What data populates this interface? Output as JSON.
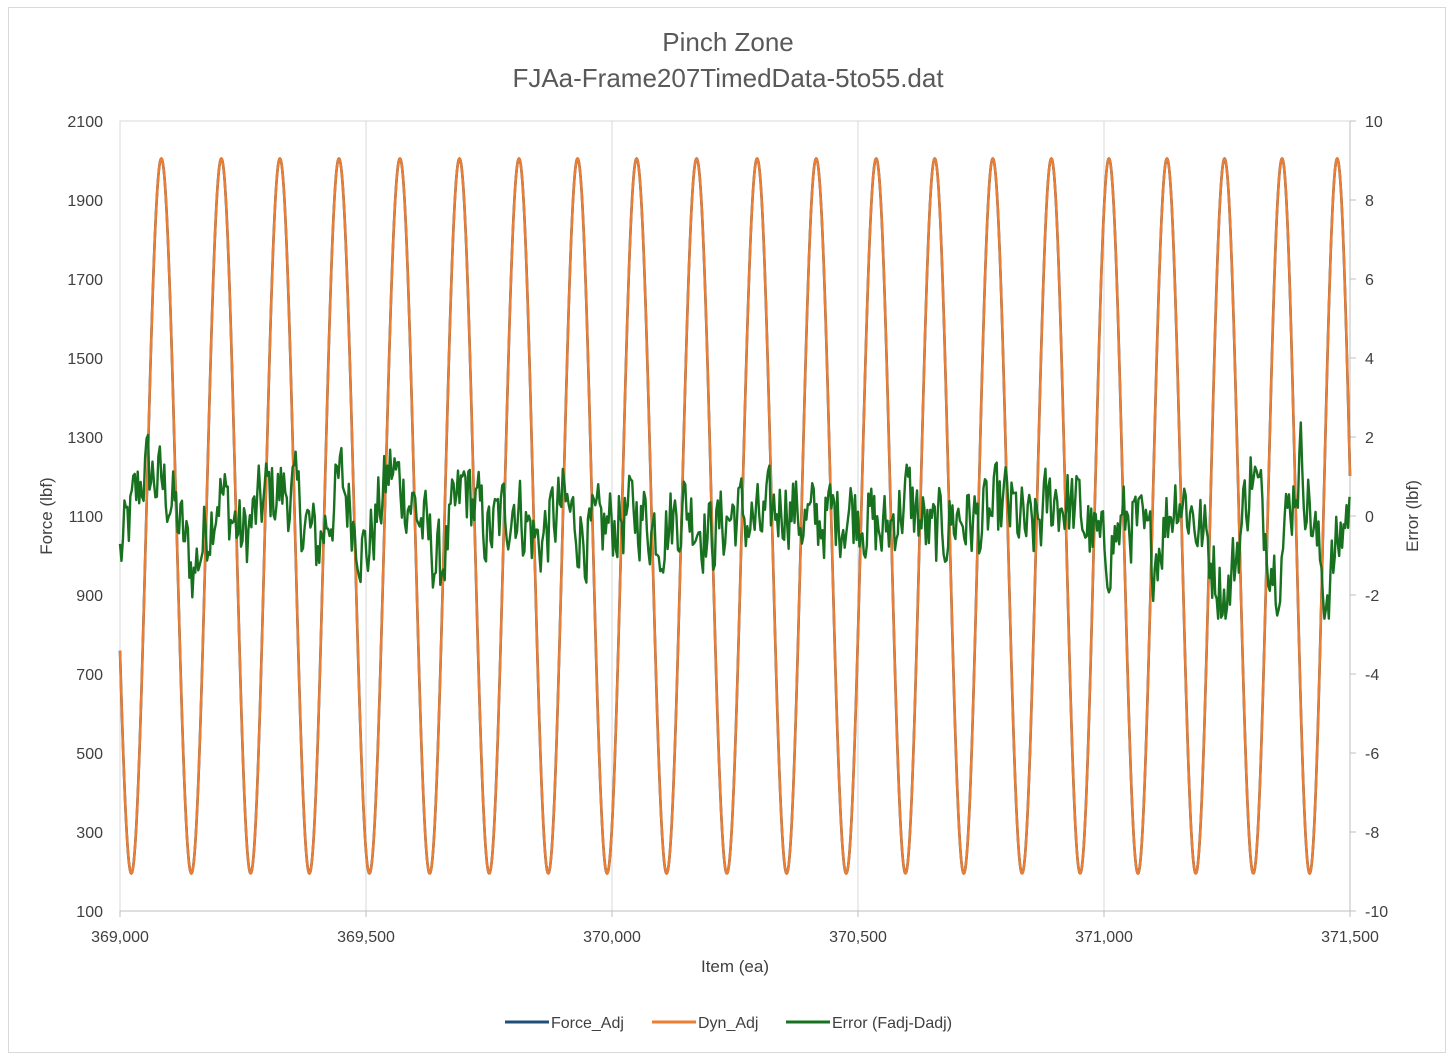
{
  "chart_data": {
    "type": "line",
    "title": "Pinch Zone",
    "subtitle": "FJAa-Frame207TimedData-5to55.dat",
    "xlabel": "Item (ea)",
    "ylabel": "Force (lbf)",
    "y2label": "Error (lbf)",
    "xlim": [
      369000,
      371500
    ],
    "ylim": [
      100,
      2100
    ],
    "y2lim": [
      -10,
      10
    ],
    "x_ticks": [
      369000,
      369500,
      370000,
      370500,
      371000,
      371500
    ],
    "x_tick_labels": [
      "369,000",
      "369,500",
      "370,000",
      "370,500",
      "371,000",
      "371,500"
    ],
    "y_ticks": [
      100,
      300,
      500,
      700,
      900,
      1100,
      1300,
      1500,
      1700,
      1900,
      2100
    ],
    "y_tick_labels": [
      "100",
      "300",
      "500",
      "700",
      "900",
      "1100",
      "1300",
      "1500",
      "1700",
      "1900",
      "2100"
    ],
    "y2_ticks": [
      -10,
      -8,
      -6,
      -4,
      -2,
      0,
      2,
      4,
      6,
      8,
      10
    ],
    "y2_tick_labels": [
      "-10",
      "-8",
      "-6",
      "-4",
      "-2",
      "0",
      "2",
      "4",
      "6",
      "8",
      "10"
    ],
    "grid": "vertical-major",
    "legend_position": "bottom",
    "series": [
      {
        "name": "Force_Adj",
        "axis": "primary",
        "color": "#1f4e79",
        "peaks_x": [
          369084,
          369206,
          369325,
          369445,
          369569,
          369690,
          369811,
          369930,
          370050,
          370172,
          370295,
          370415,
          370537,
          370656,
          370774,
          370893,
          371010,
          371128,
          371245,
          371362,
          371474
        ],
        "peak_value": 2005,
        "trough_value": 195
      },
      {
        "name": "Dyn_Adj",
        "axis": "primary",
        "color": "#ed7d31",
        "peaks_x": [
          369084,
          369206,
          369325,
          369445,
          369569,
          369690,
          369811,
          369930,
          370050,
          370172,
          370295,
          370415,
          370537,
          370656,
          370774,
          370893,
          371010,
          371128,
          371245,
          371362,
          371474
        ],
        "peak_value": 2005,
        "trough_value": 195
      },
      {
        "name": "Error (Fadj-Dadj)",
        "axis": "secondary",
        "color": "#17711f",
        "x": [
          369000,
          369050,
          369100,
          369150,
          369200,
          369250,
          369300,
          369350,
          369400,
          369450,
          369500,
          369550,
          369600,
          369650,
          369700,
          369750,
          369800,
          369850,
          369900,
          369950,
          370000,
          370050,
          370100,
          370150,
          370200,
          370250,
          370300,
          370350,
          370400,
          370450,
          370500,
          370550,
          370600,
          370650,
          370700,
          370750,
          370800,
          370850,
          370900,
          370950,
          371000,
          371050,
          371100,
          371150,
          371200,
          371250,
          371300,
          371350,
          371400,
          371450,
          371500
        ],
        "values": [
          -1.0,
          1.2,
          0.6,
          -1.4,
          0.7,
          -0.6,
          0.6,
          0.6,
          -0.8,
          0.9,
          -1.0,
          1.2,
          0.2,
          -1.3,
          0.8,
          -0.5,
          0.4,
          -0.7,
          0.3,
          -0.6,
          -0.2,
          0.1,
          -0.4,
          0.3,
          -0.5,
          0.1,
          -0.3,
          0.4,
          -0.2,
          0.0,
          0.2,
          -0.5,
          0.5,
          -0.6,
          0.0,
          -0.2,
          0.3,
          -0.5,
          0.5,
          0.1,
          -1.0,
          0.0,
          -1.0,
          0.7,
          -0.4,
          -2.2,
          1.2,
          -1.4,
          1.5,
          -2.0,
          0.4
        ]
      }
    ]
  }
}
